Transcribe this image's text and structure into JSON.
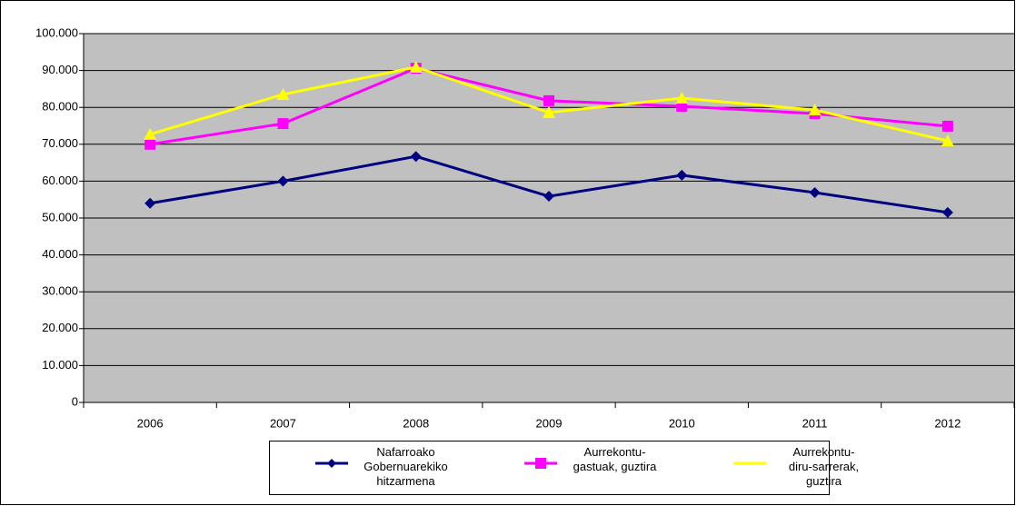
{
  "chart_data": {
    "type": "line",
    "categories": [
      "2006",
      "2007",
      "2008",
      "2009",
      "2010",
      "2011",
      "2012"
    ],
    "series": [
      {
        "name": "Nafarroako Gobernuarekiko hitzarmena",
        "color": "#000080",
        "marker": "diamond",
        "values": [
          54000,
          60000,
          66700,
          55900,
          61600,
          56900,
          51500
        ]
      },
      {
        "name": "Aurrekontu-gastuak, guztira",
        "color": "#ff00ff",
        "marker": "square",
        "values": [
          70000,
          75600,
          90600,
          81800,
          80300,
          78300,
          74900
        ]
      },
      {
        "name": "Aurrekontu-diru-sarrerak, guztira",
        "color": "#ffff00",
        "marker": "triangle",
        "values": [
          72700,
          83500,
          90900,
          78600,
          82500,
          79300,
          70900
        ]
      }
    ],
    "ylim": [
      0,
      100000
    ],
    "yticks": [
      0,
      {
        "value": 10000,
        "label": "10.000"
      },
      {
        "value": 20000,
        "label": "20.000"
      },
      {
        "value": 30000,
        "label": "30.000"
      },
      {
        "value": 40000,
        "label": "40.000"
      },
      {
        "value": 50000,
        "label": "50.000"
      },
      {
        "value": 60000,
        "label": "60.000"
      },
      {
        "value": 70000,
        "label": "70.000"
      },
      {
        "value": 80000,
        "label": "80.000"
      },
      {
        "value": 90000,
        "label": "90.000"
      },
      {
        "value": 100000,
        "label": "100.000"
      }
    ],
    "grid": true,
    "legend": "bottom"
  }
}
